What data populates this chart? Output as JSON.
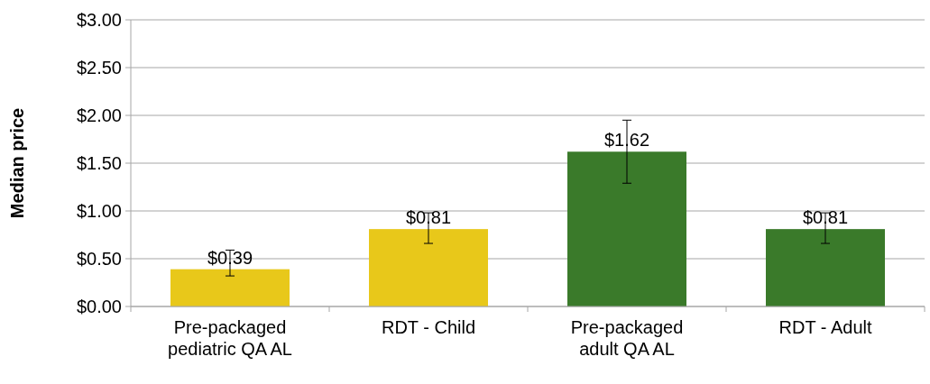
{
  "chart_data": {
    "type": "bar",
    "ylabel": "Median price",
    "categories": [
      "Pre-packaged pediatric QA AL",
      "RDT - Child",
      "Pre-packaged adult QA AL",
      "RDT - Adult"
    ],
    "values": [
      0.39,
      0.81,
      1.62,
      0.81
    ],
    "colors": [
      "#e8c81a",
      "#e8c81a",
      "#3a7a2a",
      "#3a7a2a"
    ],
    "errors": [
      [
        0.32,
        0.59
      ],
      [
        0.66,
        0.98
      ],
      [
        1.29,
        1.95
      ],
      [
        0.66,
        0.98
      ]
    ],
    "value_labels": [
      "$0.39",
      "$0.81",
      "$1.62",
      "$0.81"
    ],
    "ylim": [
      0,
      3
    ],
    "yticks": [
      {
        "value": 0,
        "label": "$0.00"
      },
      {
        "value": 0.5,
        "label": "$0.50"
      },
      {
        "value": 1,
        "label": "$1.00"
      },
      {
        "value": 1.5,
        "label": "$1.50"
      },
      {
        "value": 2,
        "label": "$2.00"
      },
      {
        "value": 2.5,
        "label": "$2.50"
      },
      {
        "value": 3,
        "label": "$3.00"
      }
    ],
    "grid": "y"
  }
}
